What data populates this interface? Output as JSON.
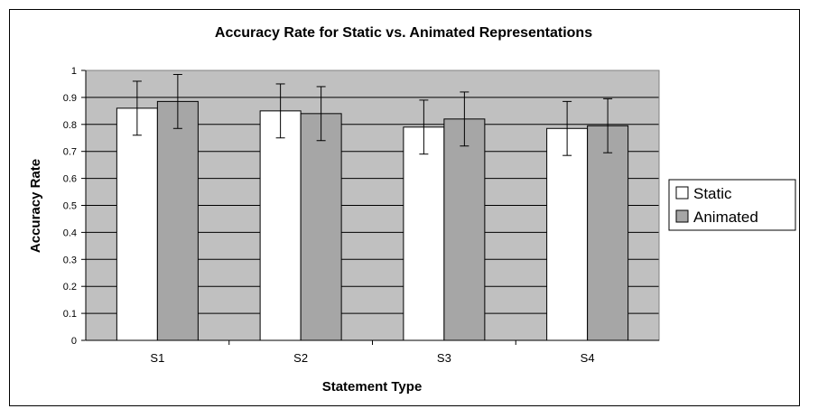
{
  "chart_data": {
    "type": "bar",
    "title": "Accuracy Rate for Static vs. Animated Representations",
    "xlabel": "Statement Type",
    "ylabel": "Accuracy Rate",
    "categories": [
      "S1",
      "S2",
      "S3",
      "S4"
    ],
    "series": [
      {
        "name": "Static",
        "color": "#ffffff",
        "values": [
          0.86,
          0.85,
          0.79,
          0.785
        ],
        "errors": [
          0.1,
          0.1,
          0.1,
          0.1
        ]
      },
      {
        "name": "Animated",
        "color": "#a6a6a6",
        "values": [
          0.885,
          0.84,
          0.82,
          0.795
        ],
        "errors": [
          0.1,
          0.1,
          0.1,
          0.1
        ]
      }
    ],
    "ylim": [
      0,
      1
    ],
    "yticks": [
      "0",
      "0.1",
      "0.2",
      "0.3",
      "0.4",
      "0.5",
      "0.6",
      "0.7",
      "0.8",
      "0.9",
      "1"
    ],
    "grid": true,
    "plot_background": "#c0c0c0",
    "legend_position": "right"
  }
}
